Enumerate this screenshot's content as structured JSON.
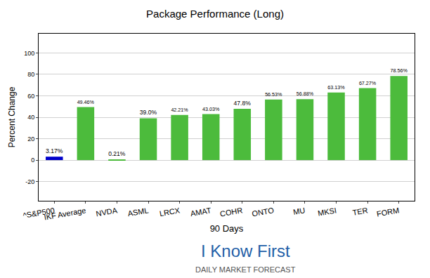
{
  "chart_data": {
    "type": "bar",
    "title": "Package Performance (Long)",
    "x_label": "90 Days",
    "y_label": "Percent Change",
    "categories": [
      "^S&P500",
      "IKF Average",
      "NVDA",
      "ASML",
      "LRCX",
      "AMAT",
      "COHR",
      "ONTO",
      "MU",
      "MKSI",
      "TER",
      "FORM"
    ],
    "values": [
      3.17,
      49.46,
      0.21,
      39.0,
      42.21,
      43.03,
      47.8,
      56.53,
      56.88,
      63.13,
      67.27,
      78.56
    ],
    "value_labels": [
      "3.17%",
      "49.46%",
      "0.21%",
      "39.0%",
      "42.21%",
      "43.03%",
      "47.8%",
      "56.53%",
      "56.88%",
      "63.13%",
      "67.27%",
      "78.56%"
    ],
    "colors": [
      "#0000cc",
      "#4cbb3c",
      "#4cbb3c",
      "#4cbb3c",
      "#4cbb3c",
      "#4cbb3c",
      "#4cbb3c",
      "#4cbb3c",
      "#4cbb3c",
      "#4cbb3c",
      "#4cbb3c",
      "#4cbb3c"
    ],
    "ylim": [
      -38,
      118
    ],
    "yticks": [
      -20,
      0,
      20,
      40,
      60,
      80,
      100
    ],
    "grid": true,
    "data_labels": true,
    "annotations": [
      "I Know First",
      "DAILY MARKET FORECAST"
    ]
  }
}
